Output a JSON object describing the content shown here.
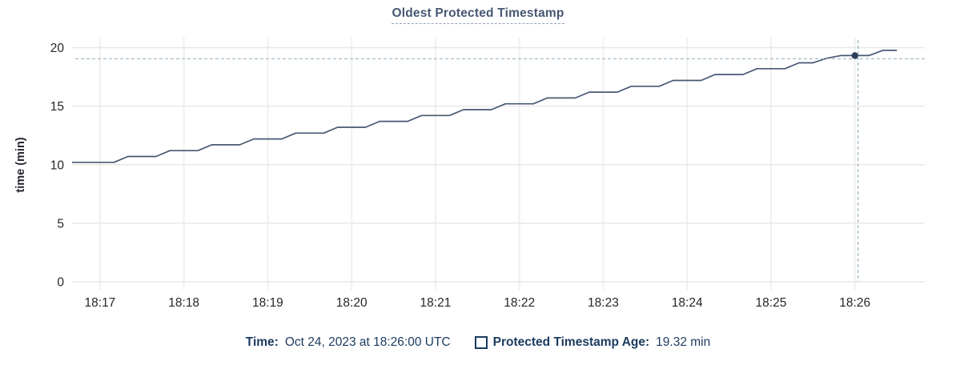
{
  "title": "Oldest Protected Timestamp",
  "colors": {
    "title": "#475872",
    "title_underline": "#98a4ba",
    "axis_text": "#24262c",
    "grid_h": "#e8e8e8",
    "grid_v": "#f0f0f0",
    "line": "#475872",
    "crosshair": "#a9bfc9",
    "dot": "#2e3d59",
    "legend_text": "#1b3a5f"
  },
  "tooltip": {
    "time_label": "Time:",
    "time_value": "Oct 24, 2023 at 18:26:00 UTC",
    "series_label": "Protected Timestamp Age:",
    "series_value": "19.32 min"
  },
  "chart_data": {
    "type": "line",
    "title": "Oldest Protected Timestamp",
    "xlabel": "",
    "ylabel": "time (min)",
    "ylim": [
      0,
      20
    ],
    "yticks": [
      0,
      5,
      10,
      15,
      20
    ],
    "xticks": [
      "18:17",
      "18:18",
      "18:19",
      "18:20",
      "18:21",
      "18:22",
      "18:23",
      "18:24",
      "18:25",
      "18:26"
    ],
    "x_domain": [
      "18:16:40",
      "18:26:50"
    ],
    "grid": true,
    "legend_position": "bottom",
    "crosshair": {
      "time": "18:26:00",
      "value": 19.32,
      "hline_value": 19.05
    },
    "series": [
      {
        "name": "Protected Timestamp Age",
        "unit": "min",
        "points": [
          [
            "18:16:40",
            10.2
          ],
          [
            "18:16:50",
            10.2
          ],
          [
            "18:17:00",
            10.2
          ],
          [
            "18:17:10",
            10.2
          ],
          [
            "18:17:20",
            10.7
          ],
          [
            "18:17:30",
            10.7
          ],
          [
            "18:17:40",
            10.7
          ],
          [
            "18:17:50",
            11.2
          ],
          [
            "18:18:00",
            11.2
          ],
          [
            "18:18:10",
            11.2
          ],
          [
            "18:18:20",
            11.7
          ],
          [
            "18:18:30",
            11.7
          ],
          [
            "18:18:40",
            11.7
          ],
          [
            "18:18:50",
            12.2
          ],
          [
            "18:19:00",
            12.2
          ],
          [
            "18:19:10",
            12.2
          ],
          [
            "18:19:20",
            12.7
          ],
          [
            "18:19:30",
            12.7
          ],
          [
            "18:19:40",
            12.7
          ],
          [
            "18:19:50",
            13.2
          ],
          [
            "18:20:00",
            13.2
          ],
          [
            "18:20:10",
            13.2
          ],
          [
            "18:20:20",
            13.7
          ],
          [
            "18:20:30",
            13.7
          ],
          [
            "18:20:40",
            13.7
          ],
          [
            "18:20:50",
            14.2
          ],
          [
            "18:21:00",
            14.2
          ],
          [
            "18:21:10",
            14.2
          ],
          [
            "18:21:20",
            14.7
          ],
          [
            "18:21:30",
            14.7
          ],
          [
            "18:21:40",
            14.7
          ],
          [
            "18:21:50",
            15.2
          ],
          [
            "18:22:00",
            15.2
          ],
          [
            "18:22:10",
            15.2
          ],
          [
            "18:22:20",
            15.7
          ],
          [
            "18:22:30",
            15.7
          ],
          [
            "18:22:40",
            15.7
          ],
          [
            "18:22:50",
            16.2
          ],
          [
            "18:23:00",
            16.2
          ],
          [
            "18:23:10",
            16.2
          ],
          [
            "18:23:20",
            16.7
          ],
          [
            "18:23:30",
            16.7
          ],
          [
            "18:23:40",
            16.7
          ],
          [
            "18:23:50",
            17.2
          ],
          [
            "18:24:00",
            17.2
          ],
          [
            "18:24:10",
            17.2
          ],
          [
            "18:24:20",
            17.7
          ],
          [
            "18:24:30",
            17.7
          ],
          [
            "18:24:40",
            17.7
          ],
          [
            "18:24:50",
            18.2
          ],
          [
            "18:25:00",
            18.2
          ],
          [
            "18:25:10",
            18.2
          ],
          [
            "18:25:20",
            18.7
          ],
          [
            "18:25:30",
            18.7
          ],
          [
            "18:25:40",
            19.1
          ],
          [
            "18:25:50",
            19.32
          ],
          [
            "18:26:00",
            19.32
          ],
          [
            "18:26:10",
            19.32
          ],
          [
            "18:26:20",
            19.77
          ],
          [
            "18:26:30",
            19.77
          ]
        ]
      }
    ]
  }
}
